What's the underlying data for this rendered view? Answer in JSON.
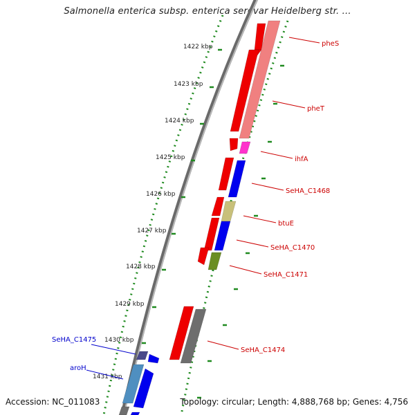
{
  "title": "Salmonella enterica subsp. enterica serovar Heidelberg str. ...",
  "footer": {
    "accession": "Accession: NC_011083",
    "summary": "Topology: circular; Length: 4,888,768 bp; Genes: 4,756"
  },
  "colors": {
    "backbone": "#8c8c8c",
    "tick_dots": "#1f8a1f",
    "label_red": "#cc0000",
    "label_blue": "#0000cc",
    "gene_red": "#ee0000",
    "gene_pink": "#f08080",
    "gene_magenta": "#ff33cc",
    "gene_blue": "#0000ee",
    "gene_khaki": "#c8c07a",
    "gene_olive": "#6b8e23",
    "gene_grey": "#6e6e6e",
    "gene_slate": "#4a4a8a",
    "gene_lightblue": "#4f8fc0"
  },
  "ticks": [
    {
      "label": "1422 kbp"
    },
    {
      "label": "1423 kbp"
    },
    {
      "label": "1424 kbp"
    },
    {
      "label": "1425 kbp"
    },
    {
      "label": "1426 kbp"
    },
    {
      "label": "1427 kbp"
    },
    {
      "label": "1428 kbp"
    },
    {
      "label": "1429 kbp"
    },
    {
      "label": "1430 kbp"
    },
    {
      "label": "1431 kbp"
    }
  ],
  "gene_labels": [
    {
      "name": "pheS",
      "color": "red"
    },
    {
      "name": "pheT",
      "color": "red"
    },
    {
      "name": "ihfA",
      "color": "red"
    },
    {
      "name": "SeHA_C1468",
      "color": "red"
    },
    {
      "name": "btuE",
      "color": "red"
    },
    {
      "name": "SeHA_C1470",
      "color": "red"
    },
    {
      "name": "SeHA_C1471",
      "color": "red"
    },
    {
      "name": "SeHA_C1474",
      "color": "red"
    },
    {
      "name": "SeHA_C1475",
      "color": "blue"
    },
    {
      "name": "aroH",
      "color": "blue"
    }
  ]
}
